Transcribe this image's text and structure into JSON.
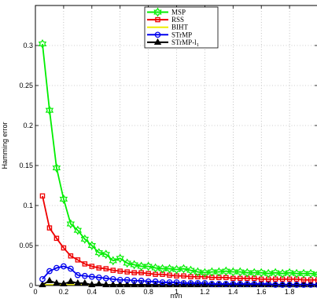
{
  "chart_data": {
    "type": "line",
    "xlabel": "m/n",
    "ylabel": "Hamming error",
    "xlim": [
      0,
      2
    ],
    "ylim": [
      0,
      0.35
    ],
    "xticks": [
      "0",
      "0.2",
      "0.4",
      "0.6",
      "0.8",
      "1",
      "1.2",
      "1.4",
      "1.6",
      "1.8"
    ],
    "yticks": [
      "0",
      "0.05",
      "0.1",
      "0.15",
      "0.2",
      "0.25",
      "0.3"
    ],
    "grid": true,
    "legend_position": "top-center",
    "x": [
      0.05,
      0.1,
      0.15,
      0.2,
      0.25,
      0.3,
      0.35,
      0.4,
      0.45,
      0.5,
      0.55,
      0.6,
      0.65,
      0.7,
      0.75,
      0.8,
      0.85,
      0.9,
      0.95,
      1.0,
      1.05,
      1.1,
      1.15,
      1.2,
      1.25,
      1.3,
      1.35,
      1.4,
      1.45,
      1.5,
      1.55,
      1.6,
      1.65,
      1.7,
      1.75,
      1.8,
      1.85,
      1.9,
      1.95,
      2.0
    ],
    "series": [
      {
        "name": "MSP",
        "color": "#00ee00",
        "marker": "hexagram",
        "values": [
          0.302,
          0.219,
          0.147,
          0.108,
          0.077,
          0.069,
          0.058,
          0.05,
          0.041,
          0.039,
          0.031,
          0.034,
          0.028,
          0.026,
          0.024,
          0.024,
          0.022,
          0.021,
          0.021,
          0.02,
          0.021,
          0.019,
          0.017,
          0.016,
          0.017,
          0.017,
          0.018,
          0.017,
          0.017,
          0.016,
          0.016,
          0.016,
          0.015,
          0.016,
          0.015,
          0.016,
          0.015,
          0.015,
          0.015,
          0.014
        ]
      },
      {
        "name": "RSS",
        "color": "#ee0000",
        "marker": "square",
        "values": [
          0.112,
          0.072,
          0.059,
          0.047,
          0.037,
          0.032,
          0.027,
          0.024,
          0.022,
          0.021,
          0.019,
          0.018,
          0.017,
          0.016,
          0.016,
          0.015,
          0.014,
          0.014,
          0.013,
          0.012,
          0.012,
          0.011,
          0.011,
          0.011,
          0.01,
          0.01,
          0.01,
          0.009,
          0.009,
          0.009,
          0.009,
          0.008,
          0.008,
          0.008,
          0.008,
          0.008,
          0.008,
          0.007,
          0.007,
          0.007
        ]
      },
      {
        "name": "BIHT",
        "color": "#eeee00",
        "marker": "none",
        "values": [
          0.001,
          0.001,
          0.001,
          0.001,
          0.001,
          0.001,
          0.001,
          0.001,
          0.001,
          0.001,
          0.001,
          0.001,
          0.001,
          0.001,
          0.001,
          0.001,
          0.001,
          0.001,
          0.001,
          0.001,
          0.001,
          0.001,
          0.001,
          0.001,
          0.001,
          0.001,
          0.001,
          0.001,
          0.001,
          0.001,
          0.001,
          0.001,
          0.001,
          0.001,
          0.001,
          0.001,
          0.001,
          0.001,
          0.001,
          0.001
        ]
      },
      {
        "name": "STrMP",
        "color": "#0000ee",
        "marker": "circle",
        "values": [
          0.008,
          0.018,
          0.022,
          0.024,
          0.021,
          0.013,
          0.012,
          0.011,
          0.01,
          0.009,
          0.008,
          0.007,
          0.007,
          0.006,
          0.006,
          0.005,
          0.005,
          0.004,
          0.004,
          0.004,
          0.003,
          0.003,
          0.003,
          0.003,
          0.002,
          0.002,
          0.002,
          0.002,
          0.002,
          0.002,
          0.002,
          0.002,
          0.002,
          0.001,
          0.001,
          0.001,
          0.001,
          0.001,
          0.001,
          0.001
        ]
      },
      {
        "name": "STrMP-l",
        "name_subscript": "1",
        "color": "#000000",
        "marker": "triangle",
        "values": [
          0.001,
          0.006,
          0.003,
          0.002,
          0.005,
          0.003,
          0.003,
          0.001,
          0.002,
          0.001,
          0.001,
          0.001,
          0.001,
          0.001,
          0.001,
          0.001,
          0.001,
          0.001,
          0.001,
          0.001,
          0.001,
          0.001,
          0.001,
          0.001,
          0.001,
          0.001,
          0.001,
          0.001,
          0.001,
          0.001,
          0.001,
          0.001,
          0.001,
          0.001,
          0.001,
          0.001,
          0.001,
          0.001,
          0.001,
          0.001
        ]
      }
    ]
  }
}
